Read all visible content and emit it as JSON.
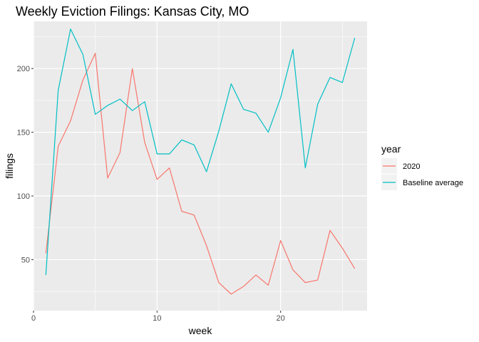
{
  "chart_data": {
    "type": "line",
    "title": "Weekly Eviction Filings: Kansas City, MO",
    "xlabel": "week",
    "ylabel": "filings",
    "xlim": [
      0,
      27
    ],
    "ylim": [
      10,
      237
    ],
    "x_ticks": [
      0,
      10,
      20
    ],
    "y_ticks": [
      50,
      100,
      150,
      200
    ],
    "x_tick_labels": [
      "0",
      "10",
      "20"
    ],
    "y_tick_labels": [
      "50",
      "100",
      "150",
      "200"
    ],
    "grid": true,
    "legend": {
      "title": "year",
      "position": "right"
    },
    "x": [
      1,
      2,
      3,
      4,
      5,
      6,
      7,
      8,
      9,
      10,
      11,
      12,
      13,
      14,
      15,
      16,
      17,
      18,
      19,
      20,
      21,
      22,
      23,
      24,
      25,
      26
    ],
    "series": [
      {
        "name": "2020",
        "color": "#F8766D",
        "values": [
          55,
          139,
          159,
          191,
          212,
          114,
          134,
          200,
          142,
          113,
          122,
          88,
          85,
          61,
          32,
          23,
          29,
          38,
          30,
          65,
          42,
          32,
          34,
          73,
          59,
          43
        ]
      },
      {
        "name": "Baseline average",
        "color": "#00BFC4",
        "values": [
          38,
          183,
          231,
          211,
          164,
          171,
          176,
          167,
          174,
          133,
          133,
          144,
          140,
          119,
          151,
          188,
          168,
          165,
          150,
          177,
          215,
          122,
          172,
          193,
          189,
          224
        ]
      }
    ]
  }
}
